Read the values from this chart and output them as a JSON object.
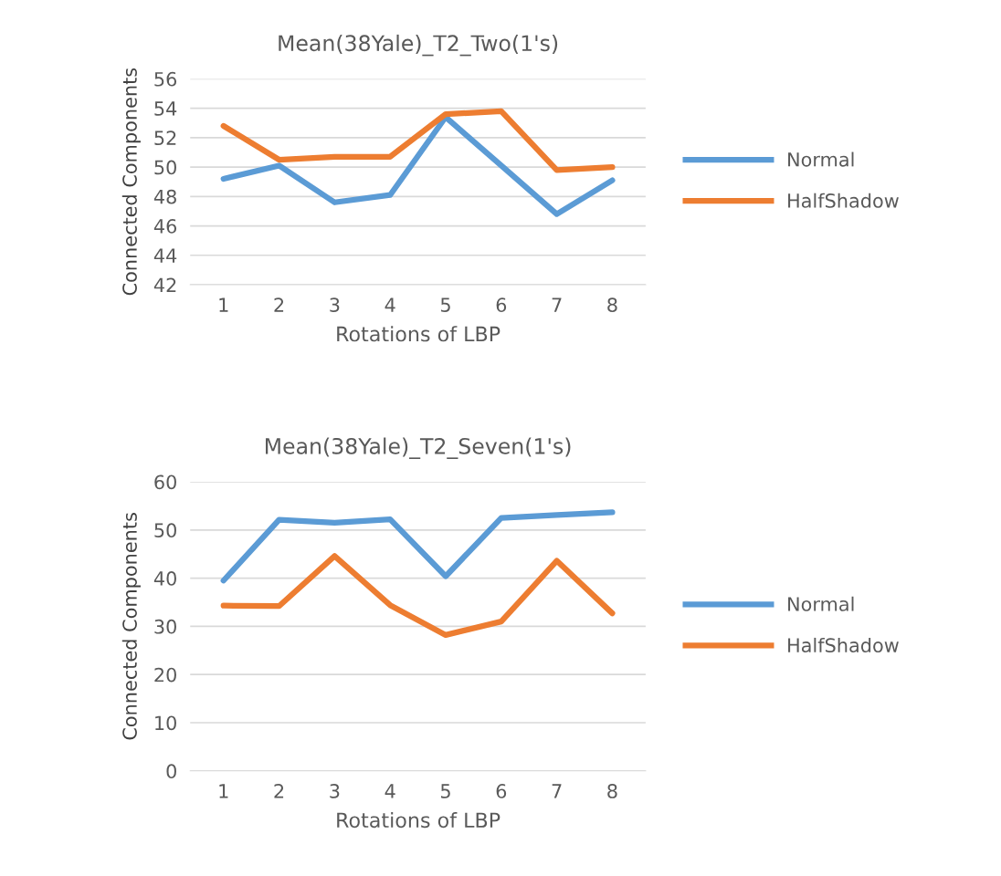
{
  "chart_data": [
    {
      "type": "line",
      "title": "Mean(38Yale)_T2_Two(1's)",
      "xlabel": "Rotations of LBP",
      "ylabel": "Connected Components",
      "categories": [
        "1",
        "2",
        "3",
        "4",
        "5",
        "6",
        "7",
        "8"
      ],
      "series": [
        {
          "name": "Normal",
          "color": "#5b9bd5",
          "values": [
            49.2,
            50.1,
            47.6,
            48.1,
            53.4,
            50.1,
            46.8,
            49.1
          ]
        },
        {
          "name": "HalfShadow",
          "color": "#ed7d31",
          "values": [
            52.8,
            50.5,
            50.7,
            50.7,
            53.6,
            53.8,
            49.8,
            50.0
          ]
        }
      ],
      "ylim": [
        42,
        56
      ],
      "yticks": [
        42,
        44,
        46,
        48,
        50,
        52,
        54,
        56
      ],
      "grid": "y",
      "legend": "right",
      "marker": "none",
      "line_style": "solid"
    },
    {
      "type": "line",
      "title": "Mean(38Yale)_T2_Seven(1's)",
      "xlabel": "Rotations of LBP",
      "ylabel": "Connected Components",
      "categories": [
        "1",
        "2",
        "3",
        "4",
        "5",
        "6",
        "7",
        "8"
      ],
      "series": [
        {
          "name": "Normal",
          "color": "#5b9bd5",
          "values": [
            39.5,
            52.1,
            51.5,
            52.2,
            40.4,
            52.5,
            53.1,
            53.7
          ]
        },
        {
          "name": "HalfShadow",
          "color": "#ed7d31",
          "values": [
            34.3,
            34.2,
            44.6,
            34.4,
            28.2,
            31.0,
            43.6,
            32.7
          ]
        }
      ],
      "ylim": [
        0,
        60
      ],
      "yticks": [
        0,
        10,
        20,
        30,
        40,
        50,
        60
      ],
      "grid": "y",
      "legend": "right",
      "marker": "none",
      "line_style": "solid"
    }
  ]
}
